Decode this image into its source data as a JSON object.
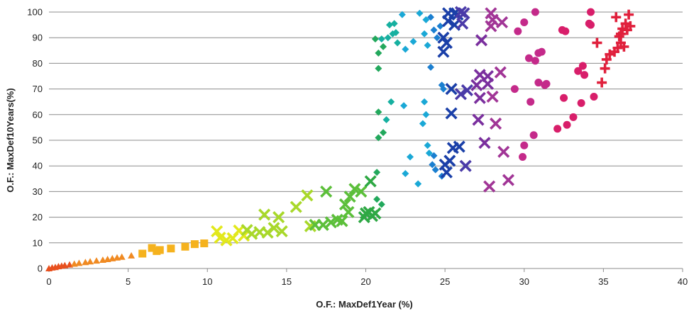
{
  "chart_data": {
    "type": "scatter",
    "title": "",
    "xlabel": "O.F.: MaxDef1Year (%)",
    "ylabel": "O.F.: MaxDef10Years(%)",
    "xlim": [
      0,
      40
    ],
    "ylim": [
      0,
      100
    ],
    "xticks": [
      "0",
      "5",
      "10",
      "15",
      "20",
      "25",
      "30",
      "35",
      "40"
    ],
    "yticks": [
      "0",
      "10",
      "20",
      "30",
      "40",
      "50",
      "60",
      "70",
      "80",
      "90",
      "100"
    ],
    "grid": "horizontal",
    "legend": "none",
    "series": [
      {
        "marker": "triangle",
        "color": "#e8501e",
        "points": [
          [
            0.0,
            0.0
          ],
          [
            0.2,
            0.3
          ],
          [
            0.4,
            0.5
          ],
          [
            0.6,
            0.8
          ],
          [
            0.8,
            1.0
          ],
          [
            1.0,
            1.2
          ],
          [
            1.3,
            1.5
          ]
        ]
      },
      {
        "marker": "triangle",
        "color": "#f08a22",
        "points": [
          [
            1.6,
            1.8
          ],
          [
            1.9,
            2.1
          ],
          [
            2.3,
            2.4
          ],
          [
            2.6,
            2.7
          ],
          [
            3.0,
            3.0
          ],
          [
            3.4,
            3.3
          ],
          [
            3.7,
            3.6
          ],
          [
            4.0,
            3.9
          ],
          [
            4.3,
            4.2
          ],
          [
            4.6,
            4.5
          ],
          [
            5.2,
            5.0
          ]
        ]
      },
      {
        "marker": "square",
        "color": "#f5b21e",
        "points": [
          [
            5.9,
            5.8
          ],
          [
            6.5,
            8.0
          ],
          [
            6.8,
            6.8
          ],
          [
            7.0,
            7.2
          ],
          [
            7.7,
            7.8
          ],
          [
            8.6,
            8.5
          ],
          [
            9.2,
            9.5
          ],
          [
            9.8,
            9.8
          ]
        ]
      },
      {
        "marker": "x",
        "color": "#e2e81c",
        "points": [
          [
            10.6,
            14.5
          ],
          [
            10.8,
            12.0
          ],
          [
            11.2,
            11.0
          ],
          [
            11.6,
            11.8
          ],
          [
            12.0,
            14.8
          ],
          [
            12.3,
            12.8
          ]
        ]
      },
      {
        "marker": "x",
        "color": "#a8d82a",
        "points": [
          [
            12.5,
            15.0
          ],
          [
            12.8,
            13.5
          ],
          [
            13.3,
            14.2
          ],
          [
            13.6,
            21.0
          ],
          [
            13.8,
            14.0
          ],
          [
            14.2,
            15.8
          ],
          [
            14.5,
            20.0
          ],
          [
            14.7,
            14.5
          ],
          [
            15.6,
            24.0
          ],
          [
            16.3,
            28.5
          ],
          [
            16.5,
            16.5
          ]
        ]
      },
      {
        "marker": "x",
        "color": "#5cbf3a",
        "points": [
          [
            16.8,
            17.0
          ],
          [
            17.3,
            17.0
          ],
          [
            17.5,
            30.0
          ],
          [
            17.8,
            18.0
          ],
          [
            18.2,
            19.0
          ],
          [
            18.5,
            18.5
          ],
          [
            18.7,
            25.0
          ],
          [
            18.9,
            22.0
          ],
          [
            19.0,
            28.0
          ],
          [
            19.3,
            31.0
          ],
          [
            19.7,
            30.0
          ]
        ]
      },
      {
        "marker": "x",
        "color": "#2ea844",
        "points": [
          [
            19.9,
            20.0
          ],
          [
            20.0,
            21.5
          ],
          [
            20.2,
            22.0
          ],
          [
            20.4,
            20.5
          ],
          [
            20.3,
            34.0
          ],
          [
            20.6,
            21.5
          ]
        ]
      },
      {
        "marker": "diamond",
        "color": "#22a85c",
        "points": [
          [
            20.7,
            37.5
          ],
          [
            20.7,
            27.0
          ],
          [
            20.8,
            51.0
          ],
          [
            20.8,
            61.0
          ],
          [
            20.8,
            78.0
          ],
          [
            20.6,
            89.5
          ],
          [
            20.8,
            84.0
          ],
          [
            21.0,
            25.0
          ],
          [
            21.1,
            53.0
          ],
          [
            21.1,
            86.5
          ]
        ]
      },
      {
        "marker": "diamond",
        "color": "#16b0a0",
        "points": [
          [
            21.0,
            89.5
          ],
          [
            21.3,
            58.0
          ],
          [
            21.4,
            90.0
          ],
          [
            21.5,
            95.0
          ],
          [
            21.6,
            65.0
          ],
          [
            21.7,
            91.5
          ],
          [
            21.8,
            95.5
          ],
          [
            21.9,
            92.0
          ],
          [
            22.0,
            88.0
          ]
        ]
      },
      {
        "marker": "diamond",
        "color": "#1aa8d6",
        "points": [
          [
            22.3,
            99.0
          ],
          [
            22.4,
            63.5
          ],
          [
            22.5,
            85.5
          ],
          [
            22.5,
            37.0
          ],
          [
            22.8,
            43.5
          ],
          [
            23.0,
            88.5
          ],
          [
            23.3,
            33.0
          ],
          [
            23.4,
            99.5
          ],
          [
            23.6,
            56.5
          ],
          [
            23.7,
            65.0
          ],
          [
            23.7,
            91.5
          ],
          [
            23.8,
            60.0
          ],
          [
            23.8,
            97.0
          ],
          [
            23.9,
            48.0
          ],
          [
            23.9,
            87.0
          ],
          [
            24.0,
            45.0
          ]
        ]
      },
      {
        "marker": "diamond",
        "color": "#1b7fd0",
        "points": [
          [
            24.1,
            98.0
          ],
          [
            24.1,
            78.5
          ],
          [
            24.2,
            40.5
          ],
          [
            24.3,
            93.0
          ],
          [
            24.3,
            44.0
          ],
          [
            24.4,
            38.5
          ],
          [
            24.5,
            90.0
          ],
          [
            24.7,
            94.5
          ],
          [
            24.8,
            36.0
          ],
          [
            24.8,
            71.5
          ],
          [
            24.9,
            70.0
          ]
        ]
      },
      {
        "marker": "x",
        "color": "#1a3fa8",
        "points": [
          [
            24.9,
            84.5
          ],
          [
            24.9,
            90.0
          ],
          [
            25.1,
            88.0
          ],
          [
            25.0,
            40.5
          ],
          [
            25.1,
            37.5
          ],
          [
            25.2,
            96.5
          ],
          [
            25.2,
            99.5
          ],
          [
            25.3,
            42.0
          ],
          [
            25.4,
            70.0
          ],
          [
            25.4,
            60.5
          ],
          [
            25.5,
            47.0
          ],
          [
            25.6,
            95.0
          ],
          [
            25.6,
            99.5
          ],
          [
            25.8,
            99.0
          ],
          [
            25.9,
            47.5
          ]
        ]
      },
      {
        "marker": "x",
        "color": "#4a3aa8",
        "points": [
          [
            26.0,
            100.0
          ],
          [
            26.0,
            68.0
          ],
          [
            26.1,
            95.5
          ],
          [
            26.2,
            99.5
          ],
          [
            26.3,
            40.0
          ],
          [
            26.4,
            69.5
          ]
        ]
      },
      {
        "marker": "x",
        "color": "#7a2f9e",
        "points": [
          [
            27.0,
            71.5
          ],
          [
            27.1,
            58.0
          ],
          [
            27.2,
            66.5
          ],
          [
            27.2,
            75.5
          ],
          [
            27.3,
            89.0
          ],
          [
            27.5,
            49.0
          ],
          [
            27.7,
            75.0
          ],
          [
            27.7,
            72.0
          ]
        ]
      },
      {
        "marker": "x",
        "color": "#a13596",
        "points": [
          [
            27.8,
            32.0
          ],
          [
            27.9,
            99.5
          ],
          [
            27.9,
            94.5
          ],
          [
            28.0,
            97.0
          ],
          [
            28.0,
            67.0
          ],
          [
            28.2,
            56.5
          ],
          [
            28.5,
            76.5
          ],
          [
            28.6,
            96.0
          ],
          [
            28.7,
            45.5
          ],
          [
            29.0,
            34.5
          ]
        ]
      },
      {
        "marker": "circle",
        "color": "#c42a8a",
        "points": [
          [
            29.4,
            70.0
          ],
          [
            29.6,
            92.5
          ],
          [
            29.9,
            43.5
          ],
          [
            30.0,
            48.0
          ],
          [
            30.0,
            96.0
          ],
          [
            30.3,
            82.0
          ],
          [
            30.4,
            65.0
          ],
          [
            30.6,
            52.0
          ],
          [
            30.7,
            100.0
          ],
          [
            30.7,
            81.0
          ],
          [
            30.9,
            84.0
          ],
          [
            30.9,
            72.5
          ],
          [
            31.1,
            84.5
          ],
          [
            31.3,
            71.5
          ],
          [
            31.4,
            72.0
          ]
        ]
      },
      {
        "marker": "circle",
        "color": "#d81e6a",
        "points": [
          [
            32.1,
            54.5
          ],
          [
            32.4,
            93.0
          ],
          [
            32.5,
            66.5
          ],
          [
            32.6,
            92.5
          ],
          [
            32.7,
            56.0
          ],
          [
            33.1,
            59.0
          ],
          [
            33.4,
            77.0
          ],
          [
            33.6,
            64.5
          ],
          [
            33.7,
            79.0
          ],
          [
            33.8,
            75.5
          ],
          [
            34.1,
            95.5
          ],
          [
            34.2,
            100.0
          ],
          [
            34.2,
            95.0
          ],
          [
            34.4,
            67.0
          ]
        ]
      },
      {
        "marker": "plus",
        "color": "#e0203c",
        "points": [
          [
            34.6,
            88.0
          ],
          [
            34.9,
            72.5
          ],
          [
            35.1,
            78.0
          ],
          [
            35.2,
            81.5
          ],
          [
            35.4,
            83.5
          ],
          [
            35.7,
            84.5
          ],
          [
            35.8,
            98.0
          ],
          [
            35.9,
            86.0
          ],
          [
            36.0,
            90.5
          ],
          [
            36.1,
            88.0
          ],
          [
            36.1,
            91.5
          ],
          [
            36.2,
            93.5
          ],
          [
            36.3,
            86.5
          ],
          [
            36.4,
            95.5
          ],
          [
            36.5,
            93.0
          ],
          [
            36.6,
            99.0
          ],
          [
            36.7,
            94.5
          ]
        ]
      }
    ]
  }
}
